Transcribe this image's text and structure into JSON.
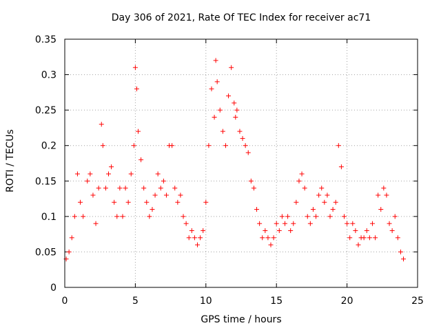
{
  "chart_data": {
    "type": "scatter",
    "title": "Day 306 of 2021, Rate Of TEC Index for receiver ac71",
    "xlabel": "GPS time / hours",
    "ylabel": "ROTI / TECUs",
    "xlim": [
      0,
      25
    ],
    "ylim": [
      0,
      0.35
    ],
    "xticks": [
      "0",
      "5",
      "10",
      "15",
      "20",
      "25"
    ],
    "yticks": [
      "0",
      "0.05",
      "0.1",
      "0.15",
      "0.2",
      "0.25",
      "0.3",
      "0.35"
    ],
    "grid": true,
    "marker": "+",
    "series": [
      {
        "color": "#ff0000",
        "x": [
          0.1,
          0.3,
          0.5,
          0.7,
          0.9,
          1.1,
          1.3,
          1.6,
          1.8,
          2.0,
          2.2,
          2.4,
          2.6,
          2.7,
          2.9,
          3.1,
          3.3,
          3.5,
          3.7,
          3.9,
          4.1,
          4.3,
          4.5,
          4.7,
          4.9,
          5.0,
          5.1,
          5.2,
          5.4,
          5.6,
          5.8,
          6.0,
          6.2,
          6.4,
          6.6,
          6.8,
          7.0,
          7.2,
          7.4,
          7.6,
          7.8,
          8.0,
          8.2,
          8.4,
          8.6,
          8.8,
          9.0,
          9.2,
          9.4,
          9.6,
          9.8,
          10.0,
          10.2,
          10.4,
          10.6,
          10.7,
          10.8,
          11.0,
          11.2,
          11.4,
          11.6,
          11.8,
          12.0,
          12.1,
          12.2,
          12.4,
          12.6,
          12.8,
          13.0,
          13.2,
          13.4,
          13.6,
          13.8,
          14.0,
          14.2,
          14.4,
          14.6,
          14.8,
          15.0,
          15.2,
          15.4,
          15.6,
          15.8,
          16.0,
          16.2,
          16.4,
          16.6,
          16.8,
          17.0,
          17.2,
          17.4,
          17.6,
          17.8,
          18.0,
          18.2,
          18.4,
          18.6,
          18.8,
          19.0,
          19.2,
          19.4,
          19.6,
          19.8,
          20.0,
          20.2,
          20.4,
          20.6,
          20.8,
          21.0,
          21.2,
          21.4,
          21.6,
          21.8,
          22.0,
          22.2,
          22.4,
          22.6,
          22.8,
          23.0,
          23.2,
          23.4,
          23.6,
          23.8,
          24.0
        ],
        "y": [
          0.04,
          0.05,
          0.07,
          0.1,
          0.16,
          0.12,
          0.1,
          0.15,
          0.16,
          0.13,
          0.09,
          0.14,
          0.23,
          0.2,
          0.14,
          0.16,
          0.17,
          0.12,
          0.1,
          0.14,
          0.1,
          0.14,
          0.12,
          0.16,
          0.2,
          0.31,
          0.28,
          0.22,
          0.18,
          0.14,
          0.12,
          0.1,
          0.11,
          0.13,
          0.16,
          0.14,
          0.15,
          0.13,
          0.2,
          0.2,
          0.14,
          0.12,
          0.13,
          0.1,
          0.09,
          0.07,
          0.08,
          0.07,
          0.06,
          0.07,
          0.08,
          0.12,
          0.2,
          0.28,
          0.24,
          0.32,
          0.29,
          0.25,
          0.22,
          0.2,
          0.27,
          0.31,
          0.26,
          0.24,
          0.25,
          0.22,
          0.21,
          0.2,
          0.19,
          0.15,
          0.14,
          0.11,
          0.09,
          0.07,
          0.08,
          0.07,
          0.06,
          0.07,
          0.09,
          0.08,
          0.1,
          0.09,
          0.1,
          0.08,
          0.09,
          0.12,
          0.15,
          0.16,
          0.14,
          0.1,
          0.09,
          0.11,
          0.1,
          0.13,
          0.14,
          0.12,
          0.13,
          0.1,
          0.11,
          0.12,
          0.2,
          0.17,
          0.1,
          0.09,
          0.07,
          0.09,
          0.08,
          0.06,
          0.07,
          0.07,
          0.08,
          0.07,
          0.09,
          0.07,
          0.13,
          0.11,
          0.14,
          0.13,
          0.09,
          0.08,
          0.1,
          0.07,
          0.05,
          0.04
        ]
      }
    ]
  }
}
